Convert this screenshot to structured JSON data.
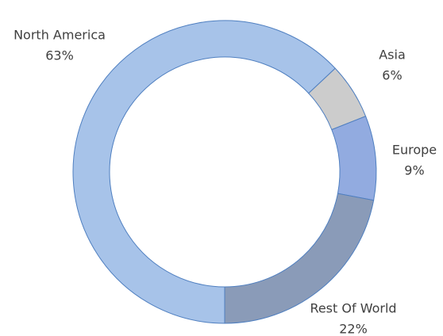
{
  "chart_data": {
    "type": "donut",
    "categories": [
      "North America",
      "Asia",
      "Europe",
      "Rest Of World"
    ],
    "values": [
      63,
      6,
      9,
      22
    ],
    "value_labels": [
      "63%",
      "6%",
      "9%",
      "22%"
    ],
    "colors": [
      "#a7c3e9",
      "#cccccc",
      "#92abe0",
      "#8a9bb8"
    ]
  }
}
